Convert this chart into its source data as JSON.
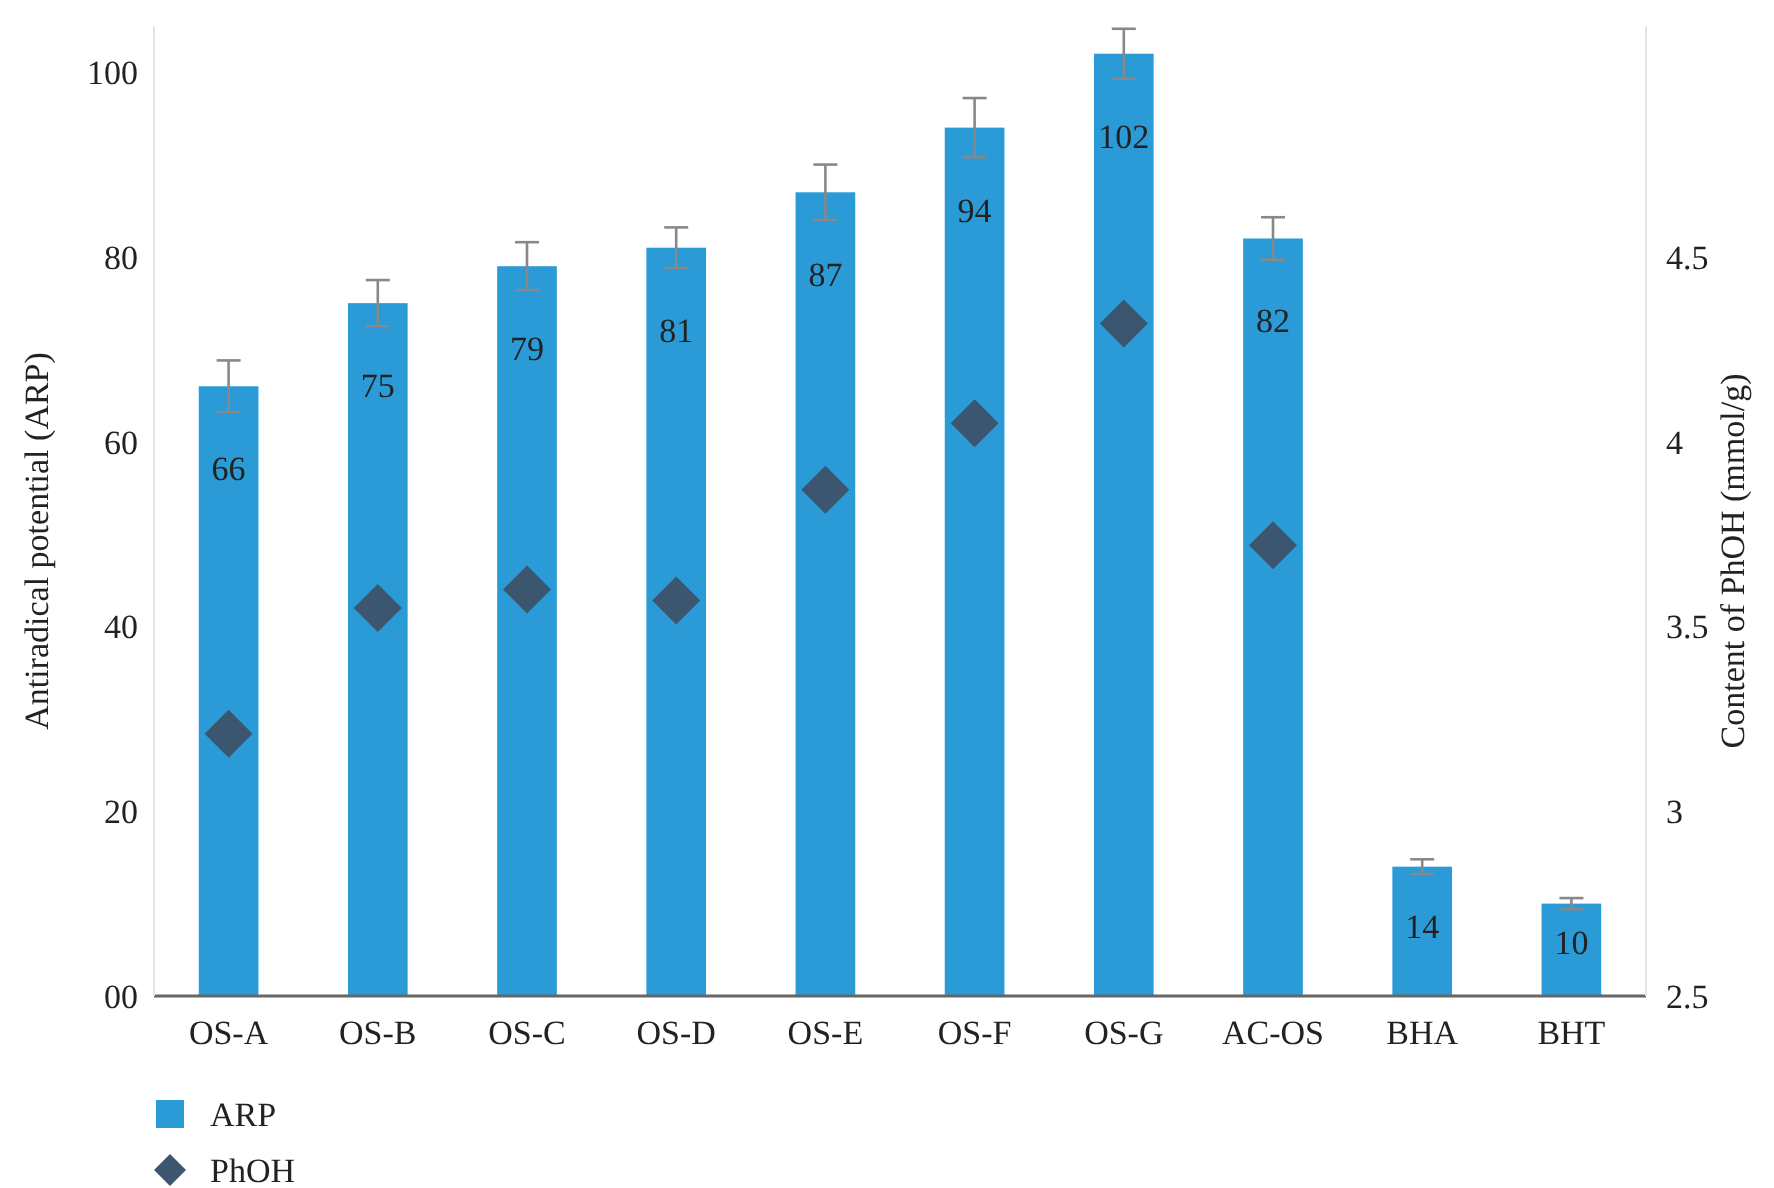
{
  "chart_data": {
    "type": "bar",
    "ylabel": "Antiradical potential (ARP)",
    "y2label": "Content of PhOH (mmol/g)",
    "categories": [
      "OS-A",
      "OS-B",
      "OS-C",
      "OS-D",
      "OS-E",
      "OS-F",
      "OS-G",
      "AC-OS",
      "BHA",
      "BHT"
    ],
    "series": [
      {
        "name": "ARP",
        "color": "#2a9bd7",
        "values": [
          66,
          75,
          79,
          81,
          87,
          94,
          102,
          82,
          14,
          10
        ],
        "value_labels": [
          "66",
          "75",
          "79",
          "81",
          "87",
          "94",
          "102",
          "82",
          "14",
          "10"
        ],
        "errors": [
          2.8,
          2.5,
          2.6,
          2.2,
          3.0,
          3.2,
          2.7,
          2.3,
          0.8,
          0.6
        ]
      },
      {
        "name": "PhOH",
        "type": "scatter",
        "axis": "y2",
        "marker": "diamond",
        "color": "#3d5670",
        "values": [
          3.21,
          3.55,
          3.6,
          3.57,
          3.87,
          4.05,
          4.32,
          3.72,
          null,
          null
        ]
      }
    ],
    "ylim": [
      0,
      105
    ],
    "yticks": [
      {
        "value": 0,
        "label": "00"
      },
      20,
      40,
      60,
      80,
      100
    ],
    "y2lim": [
      2.5,
      5.125
    ],
    "y2ticks": [
      2.5,
      3,
      3.5,
      4,
      4.5
    ],
    "grid": false,
    "legend": "bottom left"
  }
}
